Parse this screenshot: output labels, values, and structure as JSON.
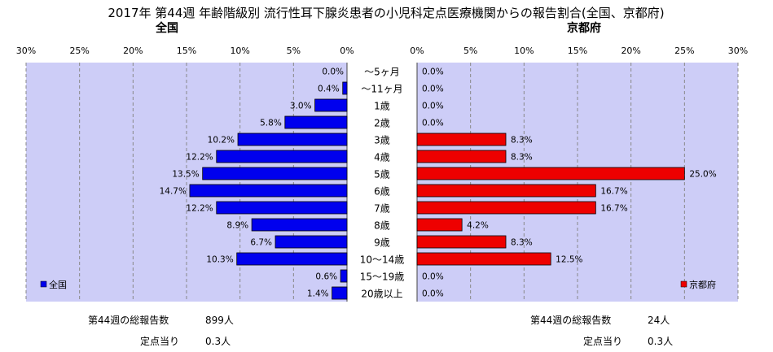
{
  "chart_data": {
    "type": "bar",
    "title": "2017年 第44週 年齢階級別 流行性耳下腺炎患者の小児科定点医療機関からの報告割合(全国、京都府)",
    "categories": [
      "～5ヶ月",
      "～11ヶ月",
      "1歳",
      "2歳",
      "3歳",
      "4歳",
      "5歳",
      "6歳",
      "7歳",
      "8歳",
      "9歳",
      "10～14歳",
      "15～19歳",
      "20歳以上"
    ],
    "xlim": [
      0,
      30
    ],
    "tick_labels": [
      "0%",
      "5%",
      "10%",
      "15%",
      "20%",
      "25%",
      "30%"
    ],
    "grid": true,
    "series": [
      {
        "name": "全国",
        "side_label": "全国",
        "color": "#0000ee",
        "values": [
          0.0,
          0.4,
          3.0,
          5.8,
          10.2,
          12.2,
          13.5,
          14.7,
          12.2,
          8.9,
          6.7,
          10.3,
          0.6,
          1.4
        ],
        "labels": [
          "0.0%",
          "0.4%",
          "3.0%",
          "5.8%",
          "10.2%",
          "12.2%",
          "13.5%",
          "14.7%",
          "12.2%",
          "8.9%",
          "6.7%",
          "10.3%",
          "0.6%",
          "1.4%"
        ],
        "legend": "全国",
        "legend_position": "bottom-left"
      },
      {
        "name": "京都府",
        "side_label": "京都府",
        "color": "#ee0000",
        "values": [
          0.0,
          0.0,
          0.0,
          0.0,
          8.3,
          8.3,
          25.0,
          16.7,
          16.7,
          4.2,
          8.3,
          12.5,
          0.0,
          0.0
        ],
        "labels": [
          "0.0%",
          "0.0%",
          "0.0%",
          "0.0%",
          "8.3%",
          "8.3%",
          "25.0%",
          "16.7%",
          "16.7%",
          "4.2%",
          "8.3%",
          "12.5%",
          "0.0%",
          "0.0%"
        ],
        "legend": "京都府",
        "legend_position": "bottom-right"
      }
    ]
  },
  "footer": {
    "left": {
      "total_label": "第44週の総報告数",
      "total_value": "899人",
      "per_label": "定点当り",
      "per_value": "0.3人"
    },
    "right": {
      "total_label": "第44週の総報告数",
      "total_value": "24人",
      "per_label": "定点当り",
      "per_value": "0.3人"
    }
  }
}
